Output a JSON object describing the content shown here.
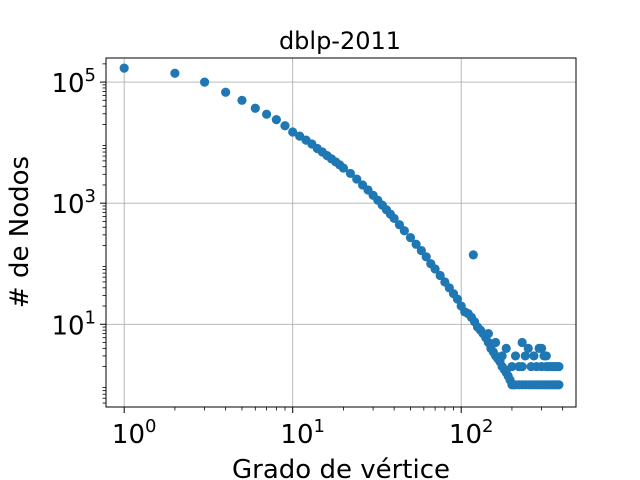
{
  "chart_data": {
    "type": "scatter",
    "title": "dblp-2011",
    "xlabel": "Grado de vértice",
    "ylabel": "# de Nodos",
    "x_scale": "log",
    "y_scale": "log",
    "xlim": [
      0.78,
      480
    ],
    "ylim": [
      0.43,
      250000
    ],
    "grid": true,
    "marker_color": "#1f77b4",
    "x_ticks": [
      {
        "value": 1,
        "base": "10",
        "exp": "0"
      },
      {
        "value": 10,
        "base": "10",
        "exp": "1"
      },
      {
        "value": 100,
        "base": "10",
        "exp": "2"
      }
    ],
    "y_ticks": [
      {
        "value": 10,
        "base": "10",
        "exp": "1"
      },
      {
        "value": 1000,
        "base": "10",
        "exp": "3"
      },
      {
        "value": 100000,
        "base": "10",
        "exp": "5"
      }
    ],
    "series": [
      {
        "x": [
          1,
          2,
          3,
          4,
          5,
          6,
          7,
          8,
          9,
          10,
          11,
          12,
          13,
          14,
          15,
          16,
          17,
          18,
          19,
          20,
          22,
          24,
          26,
          28,
          30,
          32,
          34,
          36,
          38,
          40,
          43,
          46,
          50,
          54,
          58,
          62,
          66,
          70,
          75,
          80,
          85,
          90,
          95,
          100,
          105,
          110,
          115,
          118,
          120,
          125,
          130,
          135,
          140,
          145,
          150,
          155,
          160,
          165,
          170,
          175,
          180,
          185,
          190,
          195,
          200,
          205,
          210,
          220,
          230,
          240,
          250,
          260,
          270,
          280,
          290,
          300,
          310,
          320,
          330,
          340,
          350,
          360,
          370,
          380,
          145,
          160,
          175,
          185,
          200,
          210,
          220,
          230,
          240,
          260,
          280,
          300,
          320,
          340,
          360,
          380,
          230,
          250,
          270,
          290,
          310,
          330,
          350,
          370,
          300,
          320
        ],
        "y": [
          170000,
          140000,
          100000,
          68000,
          50000,
          37000,
          29500,
          24000,
          19000,
          15000,
          12800,
          11000,
          9500,
          8000,
          7000,
          6100,
          5400,
          4800,
          4300,
          3800,
          3100,
          2500,
          2000,
          1650,
          1350,
          1120,
          930,
          780,
          660,
          560,
          440,
          350,
          270,
          210,
          165,
          130,
          100,
          82,
          64,
          50,
          40,
          32,
          26,
          20,
          16,
          15,
          13,
          140,
          11,
          9,
          8,
          7,
          6,
          5,
          4,
          3.5,
          3,
          2.7,
          2.4,
          2,
          1.8,
          1.6,
          1.4,
          1.2,
          1,
          1,
          1,
          1,
          1,
          1,
          1,
          1,
          1,
          1,
          1,
          1,
          1,
          1,
          1,
          1,
          1,
          1,
          1,
          1,
          7,
          5,
          3,
          4,
          2,
          3,
          2,
          2,
          3,
          2,
          2,
          2,
          2,
          2,
          2,
          2,
          5,
          4,
          3,
          4,
          3,
          2,
          2,
          2,
          4,
          3
        ]
      }
    ]
  }
}
